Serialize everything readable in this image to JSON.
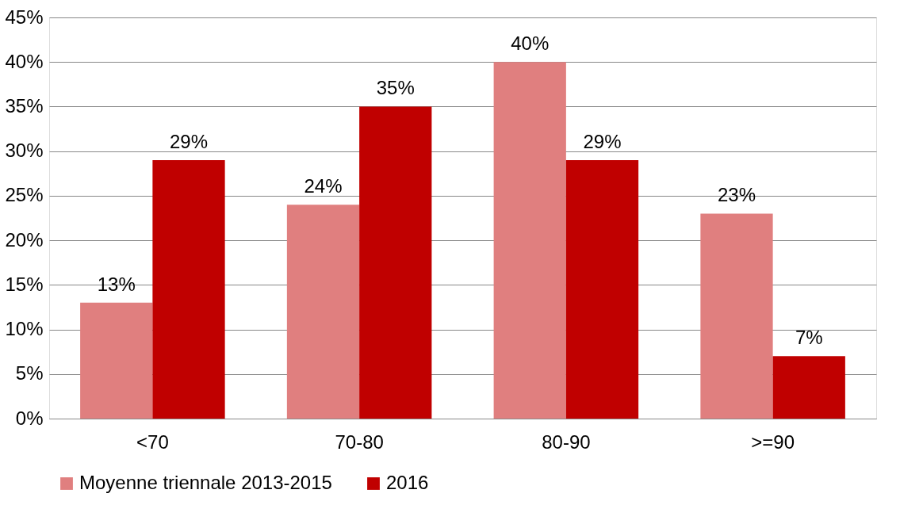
{
  "chart_data": {
    "type": "bar",
    "categories": [
      "<70",
      "70-80",
      "80-90",
      ">=90"
    ],
    "series": [
      {
        "name": "Moyenne triennale 2013-2015",
        "color": "#e07f7f",
        "values": [
          13,
          24,
          40,
          23
        ],
        "value_labels": [
          "13%",
          "24%",
          "40%",
          "23%"
        ]
      },
      {
        "name": "2016",
        "color": "#c00000",
        "values": [
          29,
          35,
          29,
          7
        ],
        "value_labels": [
          "29%",
          "35%",
          "29%",
          "7%"
        ]
      }
    ],
    "ylim": [
      0,
      45
    ],
    "yticks": [
      {
        "value": 0,
        "label": "0%"
      },
      {
        "value": 5,
        "label": "5%"
      },
      {
        "value": 10,
        "label": "10%"
      },
      {
        "value": 15,
        "label": "15%"
      },
      {
        "value": 20,
        "label": "20%"
      },
      {
        "value": 25,
        "label": "25%"
      },
      {
        "value": 30,
        "label": "30%"
      },
      {
        "value": 35,
        "label": "35%"
      },
      {
        "value": 40,
        "label": "40%"
      },
      {
        "value": 45,
        "label": "45%"
      }
    ],
    "grid": "y",
    "legend": "bottom"
  }
}
